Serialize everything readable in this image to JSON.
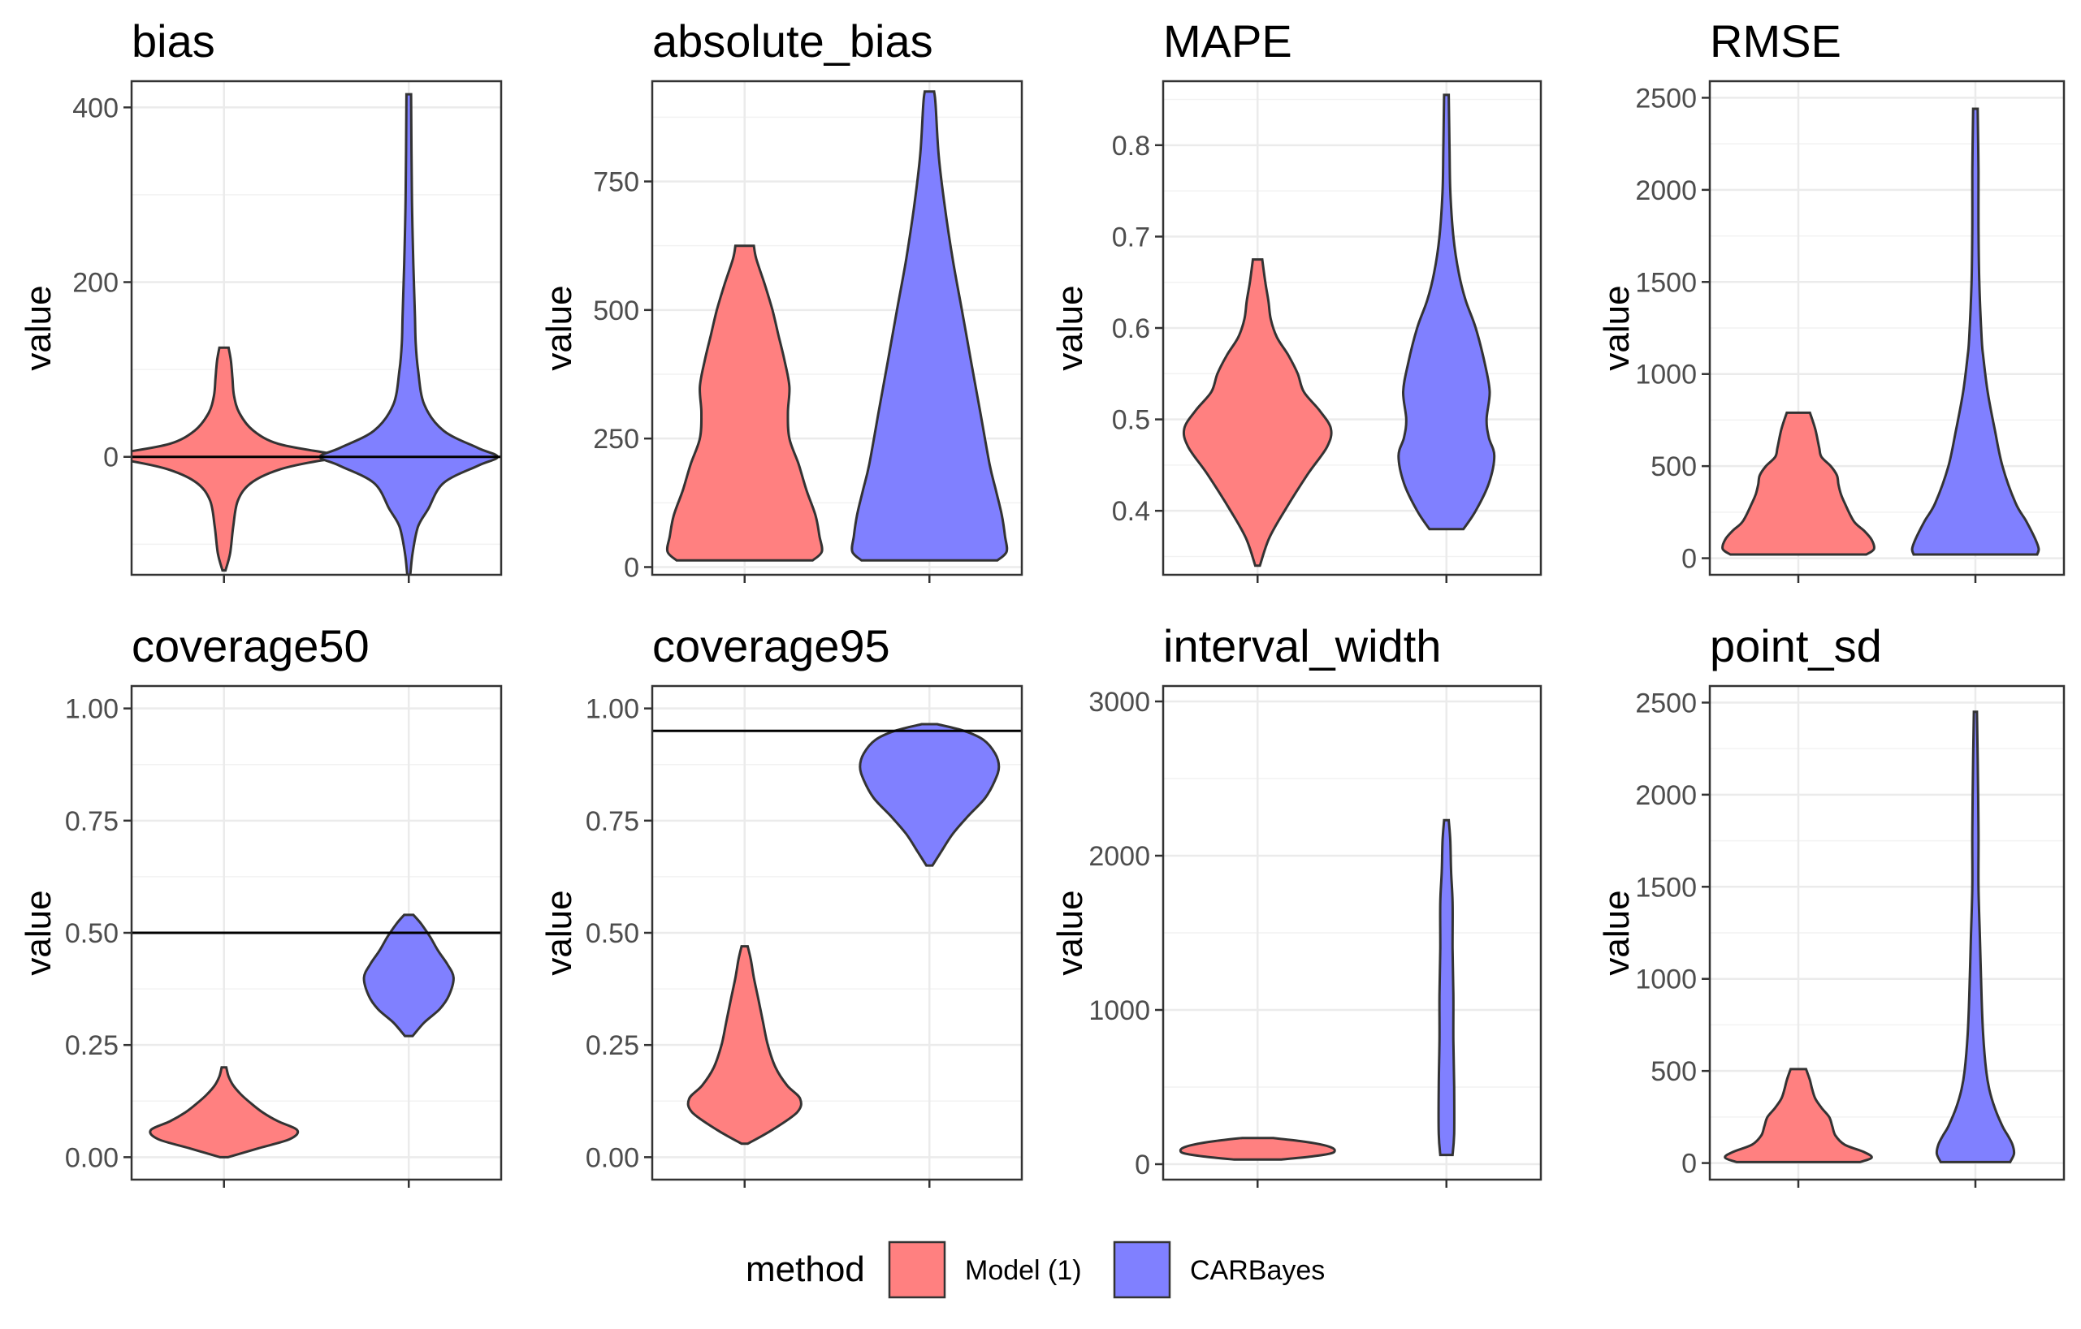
{
  "chart_data": [
    {
      "type": "violin",
      "title": "bias",
      "ylabel": "value",
      "ylim": [
        -135,
        430
      ],
      "yticks": [
        0,
        200,
        400
      ],
      "yticklabels": [
        "0",
        "200",
        "400"
      ],
      "ref_line": 0,
      "series": [
        {
          "name": "Model (1)",
          "min": -130,
          "max": 125,
          "profile": [
            [
              -130,
              2
            ],
            [
              -110,
              8
            ],
            [
              -80,
              12
            ],
            [
              -50,
              18
            ],
            [
              -30,
              35
            ],
            [
              -15,
              70
            ],
            [
              -5,
              120
            ],
            [
              0,
              165
            ],
            [
              5,
              130
            ],
            [
              15,
              70
            ],
            [
              30,
              38
            ],
            [
              50,
              20
            ],
            [
              70,
              13
            ],
            [
              90,
              11
            ],
            [
              110,
              9
            ],
            [
              125,
              6
            ]
          ]
        },
        {
          "name": "CARBayes",
          "min": -135,
          "max": 415,
          "profile": [
            [
              -135,
              2
            ],
            [
              -110,
              5
            ],
            [
              -80,
              12
            ],
            [
              -60,
              25
            ],
            [
              -30,
              45
            ],
            [
              -10,
              90
            ],
            [
              0,
              115
            ],
            [
              10,
              90
            ],
            [
              30,
              45
            ],
            [
              60,
              20
            ],
            [
              100,
              12
            ],
            [
              130,
              9
            ],
            [
              160,
              8
            ],
            [
              220,
              6
            ],
            [
              300,
              4
            ],
            [
              415,
              3
            ]
          ]
        }
      ]
    },
    {
      "type": "violin",
      "title": "absolute_bias",
      "ylabel": "value",
      "ylim": [
        -15,
        945
      ],
      "yticks": [
        0,
        250,
        500,
        750
      ],
      "yticklabels": [
        "0",
        "250",
        "500",
        "750"
      ],
      "ref_line": null,
      "series": [
        {
          "name": "Model (1)",
          "min": 13,
          "max": 625,
          "profile": [
            [
              13,
              88
            ],
            [
              30,
              100
            ],
            [
              60,
              97
            ],
            [
              100,
              92
            ],
            [
              150,
              80
            ],
            [
              200,
              70
            ],
            [
              250,
              58
            ],
            [
              300,
              56
            ],
            [
              350,
              58
            ],
            [
              400,
              52
            ],
            [
              450,
              44
            ],
            [
              500,
              36
            ],
            [
              550,
              26
            ],
            [
              600,
              15
            ],
            [
              625,
              12
            ]
          ]
        },
        {
          "name": "CARBayes",
          "min": 13,
          "max": 925,
          "profile": [
            [
              13,
              88
            ],
            [
              30,
              100
            ],
            [
              60,
              98
            ],
            [
              100,
              94
            ],
            [
              150,
              86
            ],
            [
              200,
              78
            ],
            [
              300,
              66
            ],
            [
              400,
              54
            ],
            [
              500,
              42
            ],
            [
              600,
              30
            ],
            [
              700,
              20
            ],
            [
              800,
              12
            ],
            [
              900,
              8
            ],
            [
              925,
              6
            ]
          ]
        }
      ]
    },
    {
      "type": "violin",
      "title": "MAPE",
      "ylabel": "value",
      "ylim": [
        0.33,
        0.87
      ],
      "yticks": [
        0.4,
        0.5,
        0.6,
        0.7,
        0.8
      ],
      "yticklabels": [
        "0.4",
        "0.5",
        "0.6",
        "0.7",
        "0.8"
      ],
      "ref_line": null,
      "series": [
        {
          "name": "Model (1)",
          "min": 0.34,
          "max": 0.675,
          "profile": [
            [
              0.34,
              3
            ],
            [
              0.37,
              15
            ],
            [
              0.4,
              35
            ],
            [
              0.44,
              65
            ],
            [
              0.47,
              90
            ],
            [
              0.49,
              95
            ],
            [
              0.51,
              80
            ],
            [
              0.53,
              60
            ],
            [
              0.55,
              52
            ],
            [
              0.57,
              40
            ],
            [
              0.59,
              25
            ],
            [
              0.61,
              17
            ],
            [
              0.63,
              14
            ],
            [
              0.65,
              10
            ],
            [
              0.675,
              6
            ]
          ]
        },
        {
          "name": "CARBayes",
          "min": 0.38,
          "max": 0.855,
          "profile": [
            [
              0.38,
              22
            ],
            [
              0.4,
              38
            ],
            [
              0.43,
              55
            ],
            [
              0.46,
              62
            ],
            [
              0.48,
              55
            ],
            [
              0.5,
              52
            ],
            [
              0.53,
              56
            ],
            [
              0.56,
              50
            ],
            [
              0.6,
              38
            ],
            [
              0.63,
              25
            ],
            [
              0.66,
              16
            ],
            [
              0.7,
              9
            ],
            [
              0.75,
              5
            ],
            [
              0.8,
              4
            ],
            [
              0.855,
              3
            ]
          ]
        }
      ]
    },
    {
      "type": "violin",
      "title": "RMSE",
      "ylabel": "value",
      "ylim": [
        -90,
        2590
      ],
      "yticks": [
        0,
        500,
        1000,
        1500,
        2000,
        2500
      ],
      "yticklabels": [
        "0",
        "500",
        "1000",
        "1500",
        "2000",
        "2500"
      ],
      "ref_line": null,
      "series": [
        {
          "name": "Model (1)",
          "min": 20,
          "max": 790,
          "profile": [
            [
              20,
              88
            ],
            [
              50,
              98
            ],
            [
              100,
              95
            ],
            [
              150,
              85
            ],
            [
              200,
              72
            ],
            [
              300,
              60
            ],
            [
              350,
              55
            ],
            [
              400,
              52
            ],
            [
              450,
              50
            ],
            [
              500,
              42
            ],
            [
              550,
              30
            ],
            [
              600,
              27
            ],
            [
              700,
              22
            ],
            [
              790,
              15
            ]
          ]
        },
        {
          "name": "CARBayes",
          "min": 20,
          "max": 2440,
          "profile": [
            [
              20,
              80
            ],
            [
              50,
              82
            ],
            [
              100,
              78
            ],
            [
              200,
              66
            ],
            [
              300,
              52
            ],
            [
              500,
              35
            ],
            [
              700,
              25
            ],
            [
              900,
              16
            ],
            [
              1100,
              10
            ],
            [
              1200,
              8
            ],
            [
              1500,
              5
            ],
            [
              1800,
              4
            ],
            [
              2100,
              4
            ],
            [
              2440,
              3
            ]
          ]
        }
      ]
    },
    {
      "type": "violin",
      "title": "coverage50",
      "ylabel": "value",
      "ylim": [
        -0.05,
        1.05
      ],
      "yticks": [
        0,
        0.25,
        0.5,
        0.75,
        1
      ],
      "yticklabels": [
        "0.00",
        "0.25",
        "0.50",
        "0.75",
        "1.00"
      ],
      "ref_line": 0.5,
      "series": [
        {
          "name": "Model (1)",
          "min": 0.0,
          "max": 0.2,
          "profile": [
            [
              0.0,
              5
            ],
            [
              0.02,
              45
            ],
            [
              0.04,
              85
            ],
            [
              0.06,
              95
            ],
            [
              0.08,
              70
            ],
            [
              0.1,
              50
            ],
            [
              0.12,
              35
            ],
            [
              0.14,
              22
            ],
            [
              0.16,
              12
            ],
            [
              0.18,
              6
            ],
            [
              0.2,
              3
            ]
          ]
        },
        {
          "name": "CARBayes",
          "min": 0.27,
          "max": 0.54,
          "profile": [
            [
              0.27,
              5
            ],
            [
              0.3,
              20
            ],
            [
              0.33,
              40
            ],
            [
              0.36,
              52
            ],
            [
              0.4,
              58
            ],
            [
              0.43,
              50
            ],
            [
              0.46,
              38
            ],
            [
              0.49,
              28
            ],
            [
              0.52,
              16
            ],
            [
              0.54,
              6
            ]
          ]
        }
      ]
    },
    {
      "type": "violin",
      "title": "coverage95",
      "ylabel": "value",
      "ylim": [
        -0.05,
        1.05
      ],
      "yticks": [
        0,
        0.25,
        0.5,
        0.75,
        1
      ],
      "yticklabels": [
        "0.00",
        "0.25",
        "0.50",
        "0.75",
        "1.00"
      ],
      "ref_line": 0.95,
      "series": [
        {
          "name": "Model (1)",
          "min": 0.03,
          "max": 0.47,
          "profile": [
            [
              0.03,
              4
            ],
            [
              0.06,
              35
            ],
            [
              0.1,
              68
            ],
            [
              0.13,
              72
            ],
            [
              0.16,
              55
            ],
            [
              0.2,
              40
            ],
            [
              0.25,
              30
            ],
            [
              0.3,
              24
            ],
            [
              0.35,
              18
            ],
            [
              0.4,
              12
            ],
            [
              0.44,
              8
            ],
            [
              0.47,
              4
            ]
          ]
        },
        {
          "name": "CARBayes",
          "min": 0.65,
          "max": 0.965,
          "profile": [
            [
              0.65,
              4
            ],
            [
              0.68,
              15
            ],
            [
              0.72,
              30
            ],
            [
              0.76,
              50
            ],
            [
              0.8,
              72
            ],
            [
              0.84,
              85
            ],
            [
              0.87,
              90
            ],
            [
              0.9,
              85
            ],
            [
              0.93,
              70
            ],
            [
              0.95,
              45
            ],
            [
              0.965,
              10
            ]
          ]
        }
      ]
    },
    {
      "type": "violin",
      "title": "interval_width",
      "ylabel": "value",
      "ylim": [
        -100,
        3100
      ],
      "yticks": [
        0,
        1000,
        2000,
        3000
      ],
      "yticklabels": [
        "0",
        "1000",
        "2000",
        "3000"
      ],
      "ref_line": null,
      "series": [
        {
          "name": "Model (1)",
          "min": 30,
          "max": 170,
          "profile": [
            [
              30,
              30
            ],
            [
              50,
              70
            ],
            [
              70,
              95
            ],
            [
              90,
              100
            ],
            [
              110,
              95
            ],
            [
              130,
              80
            ],
            [
              150,
              55
            ],
            [
              170,
              20
            ]
          ]
        },
        {
          "name": "CARBayes",
          "min": 60,
          "max": 2230,
          "profile": [
            [
              60,
              8
            ],
            [
              200,
              10
            ],
            [
              500,
              10
            ],
            [
              800,
              9
            ],
            [
              1100,
              9
            ],
            [
              1400,
              8
            ],
            [
              1700,
              8
            ],
            [
              1900,
              6
            ],
            [
              2100,
              5
            ],
            [
              2230,
              3
            ]
          ]
        }
      ]
    },
    {
      "type": "violin",
      "title": "point_sd",
      "ylabel": "value",
      "ylim": [
        -90,
        2590
      ],
      "yticks": [
        0,
        500,
        1000,
        1500,
        2000,
        2500
      ],
      "yticklabels": [
        "0",
        "500",
        "1000",
        "1500",
        "2000",
        "2500"
      ],
      "ref_line": null,
      "series": [
        {
          "name": "Model (1)",
          "min": 5,
          "max": 510,
          "profile": [
            [
              5,
              80
            ],
            [
              30,
              95
            ],
            [
              60,
              85
            ],
            [
              100,
              60
            ],
            [
              150,
              48
            ],
            [
              200,
              44
            ],
            [
              250,
              40
            ],
            [
              300,
              30
            ],
            [
              350,
              22
            ],
            [
              400,
              18
            ],
            [
              450,
              15
            ],
            [
              510,
              10
            ]
          ]
        },
        {
          "name": "CARBayes",
          "min": 5,
          "max": 2450,
          "profile": [
            [
              5,
              45
            ],
            [
              50,
              50
            ],
            [
              100,
              48
            ],
            [
              150,
              42
            ],
            [
              200,
              35
            ],
            [
              300,
              25
            ],
            [
              400,
              18
            ],
            [
              500,
              14
            ],
            [
              700,
              10
            ],
            [
              900,
              8
            ],
            [
              1200,
              6
            ],
            [
              1500,
              4
            ],
            [
              1800,
              4
            ],
            [
              2200,
              3
            ],
            [
              2450,
              2
            ]
          ]
        }
      ]
    }
  ],
  "legend": {
    "title": "method",
    "items": [
      {
        "label": "Model (1)",
        "color": "#ff8080"
      },
      {
        "label": "CARBayes",
        "color": "#8080ff"
      }
    ]
  },
  "colors": {
    "Model (1)": "#ff8080",
    "CARBayes": "#8080ff",
    "grid": "#ebebeb",
    "axis": "#333333"
  }
}
